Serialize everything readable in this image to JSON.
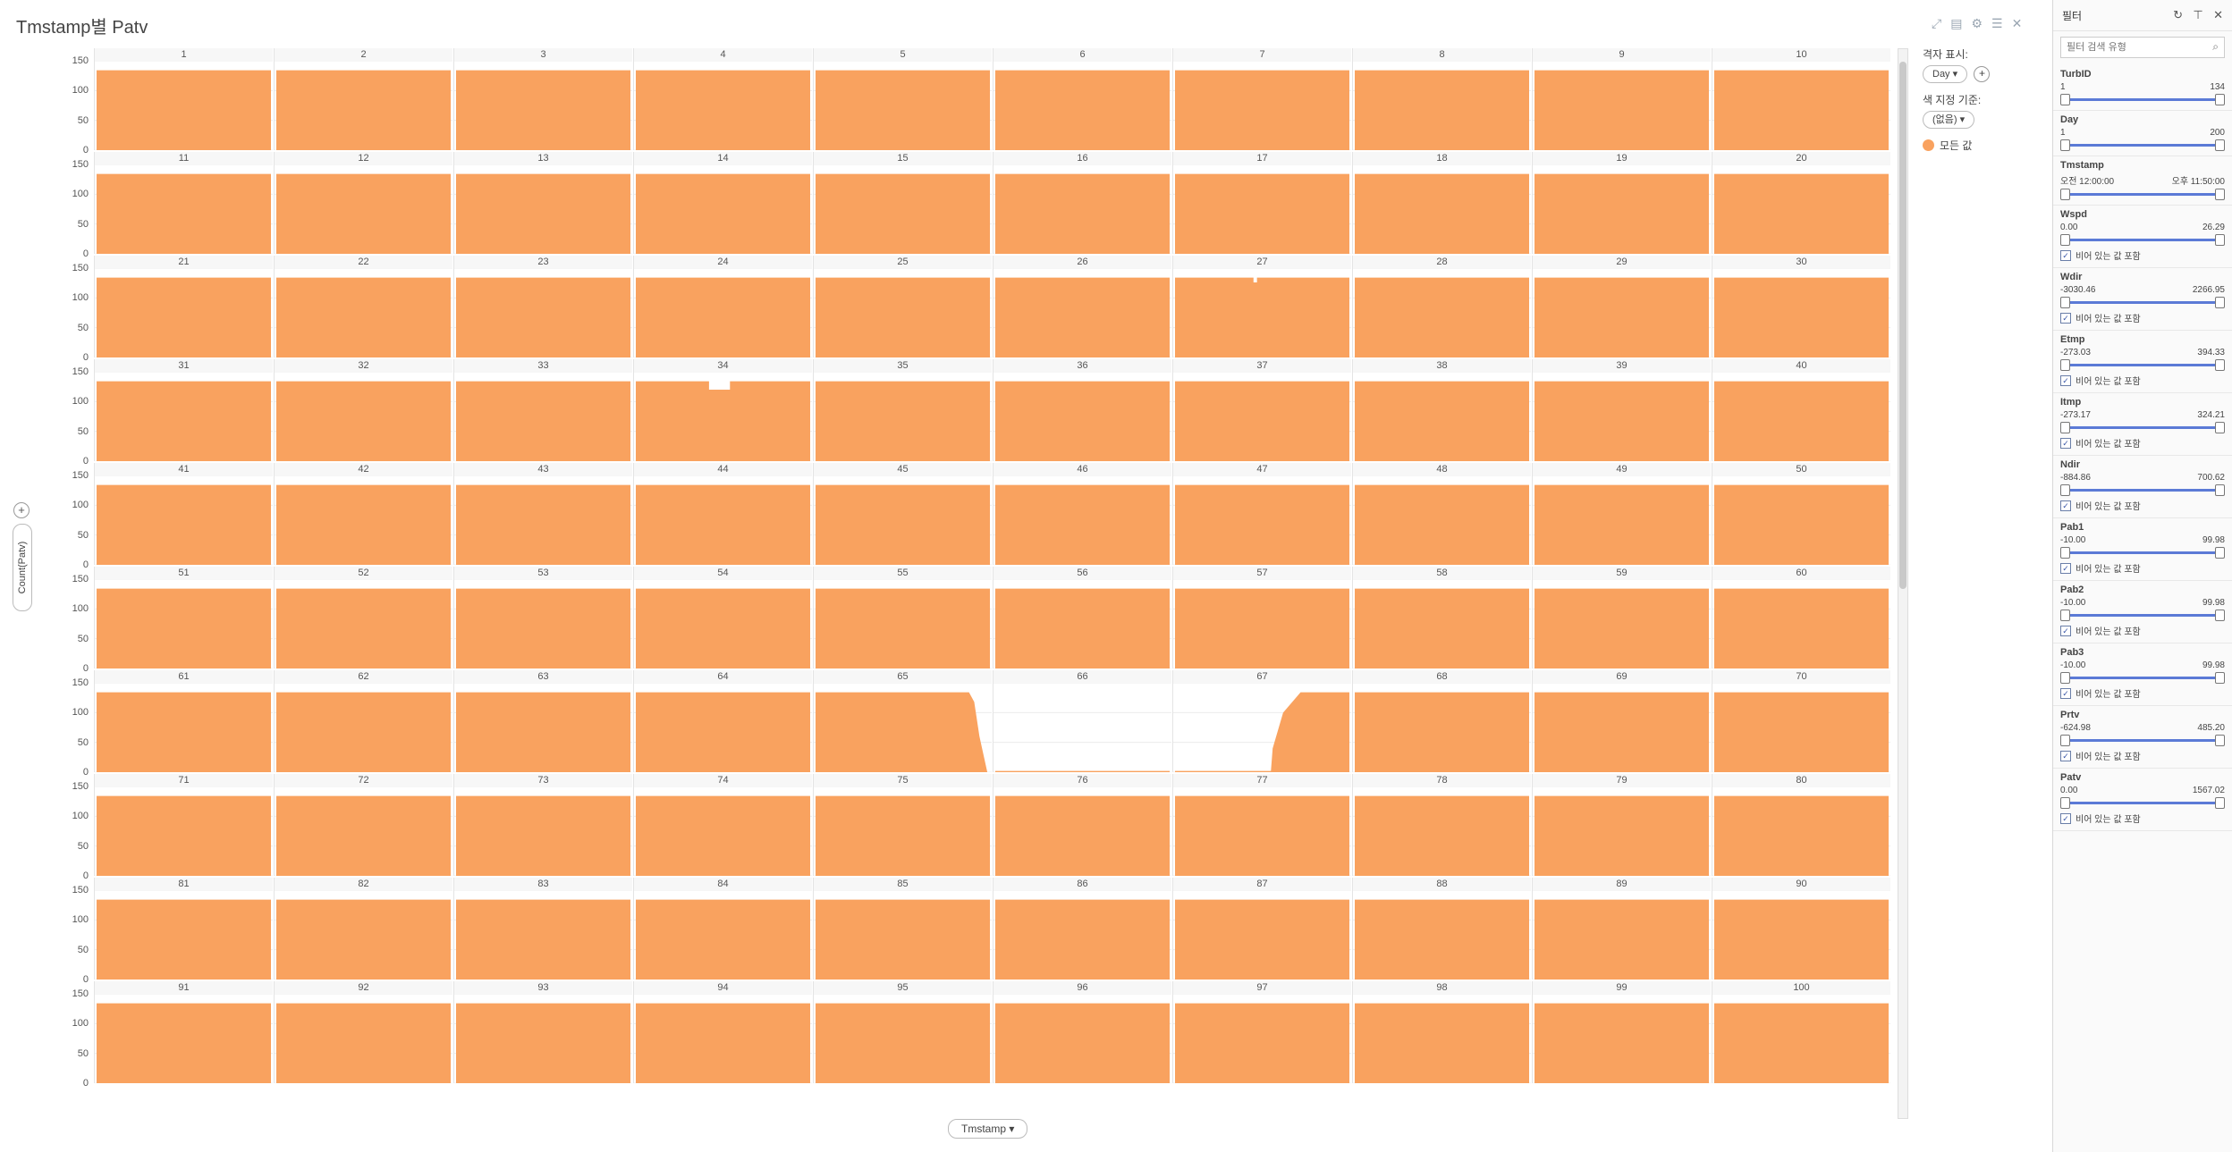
{
  "viz": {
    "title": "Tmstamp별 Patv",
    "y_axis_label": "Count(Patv)",
    "x_axis_label": "Tmstamp",
    "tools": [
      "maximize-icon",
      "details-icon",
      "settings-icon",
      "list-icon",
      "close-icon"
    ]
  },
  "legend": {
    "grid_label": "격자 표시:",
    "grid_value": "Day",
    "color_label": "색 지정 기준:",
    "color_value": "(없음)",
    "item_label": "모든 값",
    "item_color": "#f9a25f"
  },
  "filters": {
    "title": "필터",
    "search_placeholder": "필터 검색 유형",
    "include_empty_label": "비어 있는 값 포함",
    "items": [
      {
        "name": "TurbID",
        "min": "1",
        "max": "134",
        "empty": false
      },
      {
        "name": "Day",
        "min": "1",
        "max": "200",
        "empty": false
      },
      {
        "name": "Tmstamp",
        "min": "오전 12:00:00",
        "max": "오후 11:50:00",
        "empty": false
      },
      {
        "name": "Wspd",
        "min": "0.00",
        "max": "26.29",
        "empty": true
      },
      {
        "name": "Wdir",
        "min": "-3030.46",
        "max": "2266.95",
        "empty": true
      },
      {
        "name": "Etmp",
        "min": "-273.03",
        "max": "394.33",
        "empty": true
      },
      {
        "name": "Itmp",
        "min": "-273.17",
        "max": "324.21",
        "empty": true
      },
      {
        "name": "Ndir",
        "min": "-884.86",
        "max": "700.62",
        "empty": true
      },
      {
        "name": "Pab1",
        "min": "-10.00",
        "max": "99.98",
        "empty": true
      },
      {
        "name": "Pab2",
        "min": "-10.00",
        "max": "99.98",
        "empty": true
      },
      {
        "name": "Pab3",
        "min": "-10.00",
        "max": "99.98",
        "empty": true
      },
      {
        "name": "Prtv",
        "min": "-624.98",
        "max": "485.20",
        "empty": true
      },
      {
        "name": "Patv",
        "min": "0.00",
        "max": "1567.02",
        "empty": true
      }
    ]
  },
  "chart_data": {
    "type": "area",
    "panels": [
      "1",
      "2",
      "3",
      "4",
      "5",
      "6",
      "7",
      "8",
      "9",
      "10",
      "11",
      "12",
      "13",
      "14",
      "15",
      "16",
      "17",
      "18",
      "19",
      "20",
      "21",
      "22",
      "23",
      "24",
      "25",
      "26",
      "27",
      "28",
      "29",
      "30",
      "31",
      "32",
      "33",
      "34",
      "35",
      "36",
      "37",
      "38",
      "39",
      "40",
      "41",
      "42",
      "43",
      "44",
      "45",
      "46",
      "47",
      "48",
      "49",
      "50",
      "51",
      "52",
      "53",
      "54",
      "55",
      "56",
      "57",
      "58",
      "59",
      "60",
      "61",
      "62",
      "63",
      "64",
      "65",
      "66",
      "67",
      "68",
      "69",
      "70",
      "71",
      "72",
      "73",
      "74",
      "75",
      "76",
      "77",
      "78",
      "79",
      "80",
      "81",
      "82",
      "83",
      "84",
      "85",
      "86",
      "87",
      "88",
      "89",
      "90",
      "91",
      "92",
      "93",
      "94",
      "95",
      "96",
      "97",
      "98",
      "99",
      "100"
    ],
    "y_ticks": [
      0,
      50,
      100,
      150
    ],
    "ylim": [
      0,
      150
    ],
    "ylabel": "Count(Patv)",
    "xlabel": "Tmstamp",
    "color": "#f9a25f",
    "typical_value": 134,
    "exceptions": {
      "27": {
        "dip_value": 126
      },
      "34": {
        "dip_value": 120
      },
      "65": {
        "falls_to": 0,
        "pattern": "drop-at-end"
      },
      "66": {
        "value": 2
      },
      "67": {
        "rises_from": 2,
        "pattern": "rise-at-end"
      }
    }
  }
}
